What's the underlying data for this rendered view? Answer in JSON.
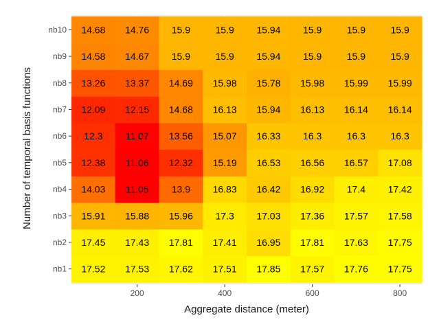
{
  "chart_data": {
    "type": "heatmap",
    "xlabel": "Aggregate distance (meter)",
    "ylabel": "Number of temporal basis functions",
    "x_values": [
      100,
      200,
      300,
      400,
      500,
      600,
      700,
      800
    ],
    "x_ticks": [
      "200",
      "400",
      "600",
      "800"
    ],
    "x_tick_values": [
      200,
      400,
      600,
      800
    ],
    "xlim": [
      50,
      850
    ],
    "y_categories": [
      "nb1",
      "nb2",
      "nb3",
      "nb4",
      "nb5",
      "nb6",
      "nb7",
      "nb8",
      "nb9",
      "nb10"
    ],
    "values": [
      [
        17.52,
        17.53,
        17.62,
        17.51,
        17.85,
        17.57,
        17.76,
        17.75
      ],
      [
        17.45,
        17.43,
        17.81,
        17.41,
        16.95,
        17.81,
        17.63,
        17.75
      ],
      [
        15.91,
        15.88,
        15.96,
        17.3,
        17.03,
        17.36,
        17.57,
        17.58
      ],
      [
        14.03,
        11.05,
        13.9,
        16.83,
        16.42,
        16.92,
        17.4,
        17.42
      ],
      [
        12.38,
        11.06,
        12.32,
        15.19,
        16.53,
        16.56,
        16.57,
        17.08
      ],
      [
        12.3,
        11.07,
        13.56,
        15.07,
        16.33,
        16.3,
        16.3,
        16.3
      ],
      [
        12.09,
        12.15,
        14.68,
        16.13,
        15.94,
        16.13,
        16.14,
        16.14
      ],
      [
        13.26,
        13.37,
        14.69,
        15.98,
        15.78,
        15.98,
        15.99,
        15.99
      ],
      [
        14.58,
        14.67,
        15.9,
        15.9,
        15.94,
        15.9,
        15.9,
        15.9
      ],
      [
        14.68,
        14.76,
        15.9,
        15.9,
        15.94,
        15.9,
        15.9,
        15.9
      ]
    ],
    "color_low": "#ff0000",
    "color_high": "#ffff00",
    "panel_background": "#ebebeb",
    "grid_color": "#ffffff",
    "legend": "none"
  }
}
